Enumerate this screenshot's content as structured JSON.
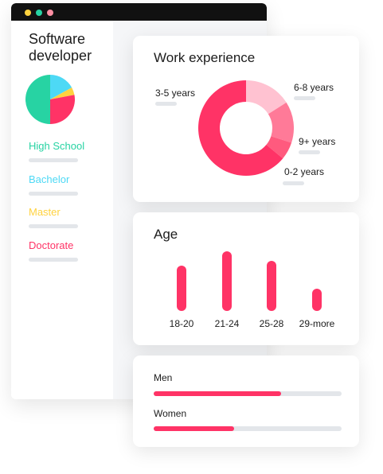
{
  "colors": {
    "accent": "#ff3366",
    "teal": "#27d3a3",
    "cyan": "#4dd9f5",
    "yellow": "#ffd23f",
    "window_bar": "#111111",
    "dot_yellow": "#ffd23f",
    "dot_green": "#27d3a3",
    "dot_pink": "#ff8fa3"
  },
  "sidebar": {
    "title": "Software developer",
    "education": [
      {
        "label": "High School",
        "color": "#27d3a3"
      },
      {
        "label": "Bachelor",
        "color": "#4dd9f5"
      },
      {
        "label": "Master",
        "color": "#ffd23f"
      },
      {
        "label": "Doctorate",
        "color": "#ff3366"
      }
    ]
  },
  "work_experience": {
    "title": "Work experience"
  },
  "age": {
    "title": "Age"
  },
  "gender": {
    "items": [
      {
        "label": "Men",
        "value": 0.68
      },
      {
        "label": "Women",
        "value": 0.43
      }
    ]
  },
  "chart_data": [
    {
      "type": "pie",
      "slices": [
        {
          "label": "High School",
          "value": 50,
          "color": "#27d3a3"
        },
        {
          "label": "Bachelor",
          "value": 17,
          "color": "#4dd9f5"
        },
        {
          "label": "Master",
          "value": 5,
          "color": "#ffd23f"
        },
        {
          "label": "Doctorate",
          "value": 28,
          "color": "#ff3366"
        }
      ]
    },
    {
      "type": "pie",
      "title": "Work experience",
      "slices": [
        {
          "label": "6-8 years",
          "value": 16,
          "color": "#ffc2d1"
        },
        {
          "label": "9+ years",
          "value": 14,
          "color": "#ff7a98"
        },
        {
          "label": "0-2 years",
          "value": 6,
          "color": "#ff5a7e"
        },
        {
          "label": "3-5 years",
          "value": 64,
          "color": "#ff3366"
        }
      ]
    },
    {
      "type": "bar",
      "title": "Age",
      "categories": [
        "18-20",
        "21-24",
        "25-28",
        "29-more"
      ],
      "values": [
        57,
        75,
        63,
        28
      ],
      "ylim": [
        0,
        80
      ]
    }
  ]
}
